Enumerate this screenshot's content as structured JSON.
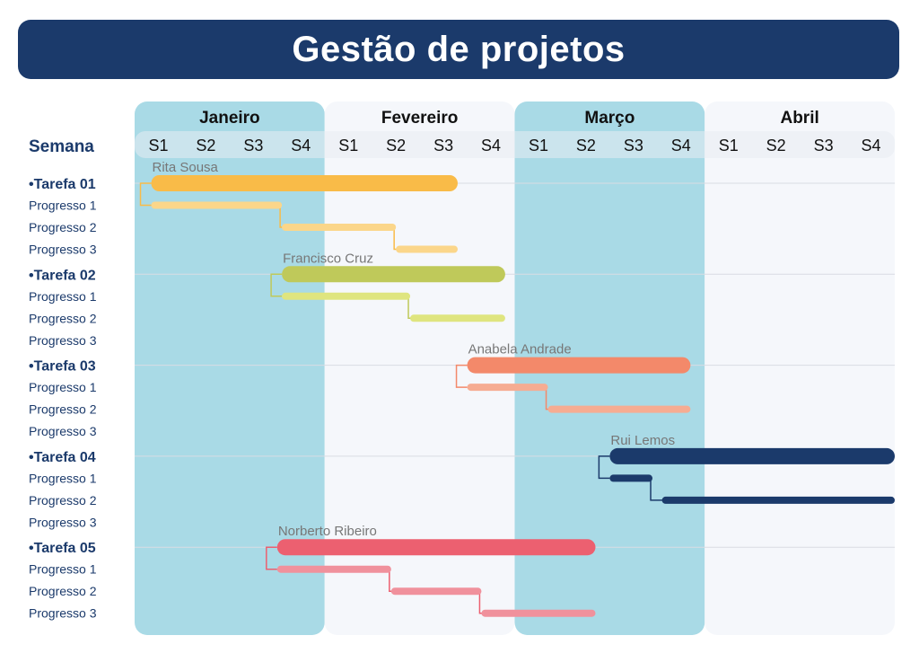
{
  "title": "Gestão de projetos",
  "colors": {
    "title_bg": "#1b3a6b",
    "label_dark": "#1b3a6b",
    "highlight_month": "#a9dae6",
    "plain_month": "#f5f7fb",
    "week_strip": "#e8ecf2",
    "divider": "#d9dce3"
  },
  "chart_data": {
    "type": "gantt",
    "title": "Gestão de projetos",
    "axis_label": "Semana",
    "months": [
      {
        "name": "Janeiro",
        "highlighted": true
      },
      {
        "name": "Fevereiro",
        "highlighted": false
      },
      {
        "name": "Março",
        "highlighted": true
      },
      {
        "name": "Abril",
        "highlighted": false
      }
    ],
    "weeks": [
      "S1",
      "S2",
      "S3",
      "S4",
      "S1",
      "S2",
      "S3",
      "S4",
      "S1",
      "S2",
      "S3",
      "S4",
      "S1",
      "S2",
      "S3",
      "S4"
    ],
    "tasks": [
      {
        "name": "•Tarefa 01",
        "owner": "Rita Sousa",
        "color": "#f9bb48",
        "light": "#fbd68a",
        "span": [
          0.35,
          6.8
        ],
        "progress": [
          {
            "label": "Progresso 1",
            "span": [
              0.35,
              3.1
            ]
          },
          {
            "label": "Progresso 2",
            "span": [
              3.1,
              5.5
            ]
          },
          {
            "label": "Progresso 3",
            "span": [
              5.5,
              6.8
            ]
          }
        ]
      },
      {
        "name": "•Tarefa 02",
        "owner": "Francisco Cruz",
        "color": "#bfc95a",
        "light": "#dfe57f",
        "span": [
          3.1,
          7.8
        ],
        "progress": [
          {
            "label": "Progresso 1",
            "span": [
              3.1,
              5.8
            ]
          },
          {
            "label": "Progresso 2",
            "span": [
              5.8,
              7.8
            ]
          },
          {
            "label": "Progresso 3",
            "span": null
          }
        ]
      },
      {
        "name": "•Tarefa 03",
        "owner": "Anabela Andrade",
        "color": "#f3896a",
        "light": "#f6ac92",
        "span": [
          7.0,
          11.7
        ],
        "progress": [
          {
            "label": "Progresso 1",
            "span": [
              7.0,
              8.7
            ]
          },
          {
            "label": "Progresso 2",
            "span": [
              8.7,
              11.7
            ]
          },
          {
            "label": "Progresso 3",
            "span": null
          }
        ]
      },
      {
        "name": "•Tarefa 04",
        "owner": "Rui Lemos",
        "color": "#1b3a6b",
        "light": "#1b3a6b",
        "span": [
          10.0,
          16.0
        ],
        "progress": [
          {
            "label": "Progresso 1",
            "span": [
              10.0,
              10.9
            ]
          },
          {
            "label": "Progresso 2",
            "span": [
              11.1,
              16.0
            ]
          },
          {
            "label": "Progresso 3",
            "span": null
          }
        ]
      },
      {
        "name": "•Tarefa 05",
        "owner": "Norberto Ribeiro",
        "color": "#ec6070",
        "light": "#f0919c",
        "span": [
          3.0,
          9.7
        ],
        "progress": [
          {
            "label": "Progresso 1",
            "span": [
              3.0,
              5.4
            ]
          },
          {
            "label": "Progresso 2",
            "span": [
              5.4,
              7.3
            ]
          },
          {
            "label": "Progresso 3",
            "span": [
              7.3,
              9.7
            ]
          }
        ]
      }
    ]
  }
}
